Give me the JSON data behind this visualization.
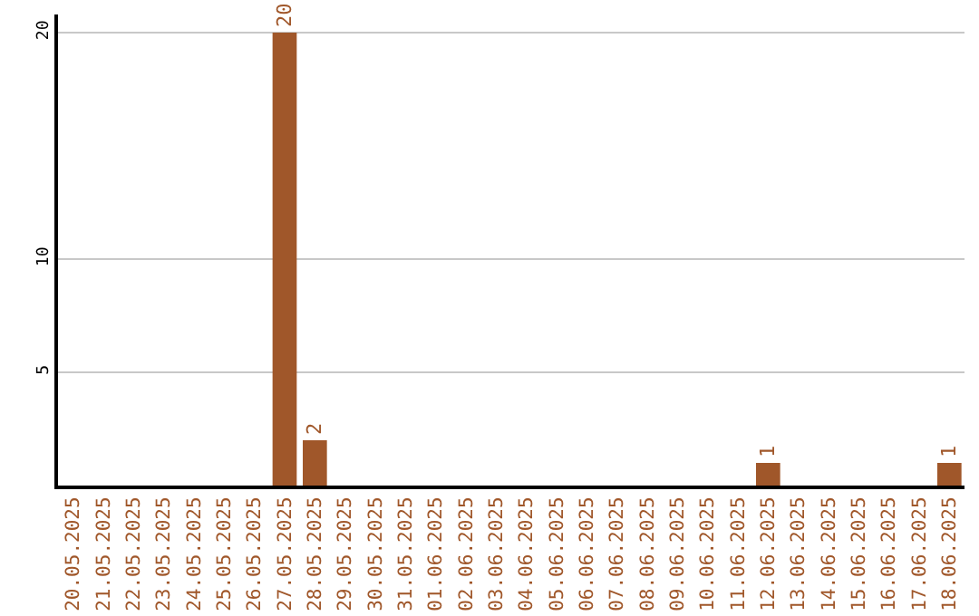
{
  "chart_data": {
    "type": "bar",
    "categories": [
      "20.05.2025",
      "21.05.2025",
      "22.05.2025",
      "23.05.2025",
      "24.05.2025",
      "25.05.2025",
      "26.05.2025",
      "27.05.2025",
      "28.05.2025",
      "29.05.2025",
      "30.05.2025",
      "31.05.2025",
      "01.06.2025",
      "02.06.2025",
      "03.06.2025",
      "04.06.2025",
      "05.06.2025",
      "06.06.2025",
      "07.06.2025",
      "08.06.2025",
      "09.06.2025",
      "10.06.2025",
      "11.06.2025",
      "12.06.2025",
      "13.06.2025",
      "14.06.2025",
      "15.06.2025",
      "16.06.2025",
      "17.06.2025",
      "18.06.2025"
    ],
    "values": [
      0,
      0,
      0,
      0,
      0,
      0,
      0,
      20,
      2,
      0,
      0,
      0,
      0,
      0,
      0,
      0,
      0,
      0,
      0,
      0,
      0,
      0,
      0,
      1,
      0,
      0,
      0,
      0,
      0,
      1
    ],
    "value_labels": [
      null,
      null,
      null,
      null,
      null,
      null,
      null,
      "20",
      "2",
      null,
      null,
      null,
      null,
      null,
      null,
      null,
      null,
      null,
      null,
      null,
      null,
      null,
      null,
      "1",
      null,
      null,
      null,
      null,
      null,
      "1"
    ],
    "color": "#a0572a",
    "ylim": [
      0,
      20.8
    ],
    "yticks": [
      5,
      10,
      20
    ],
    "grid": "y",
    "legend": false
  }
}
